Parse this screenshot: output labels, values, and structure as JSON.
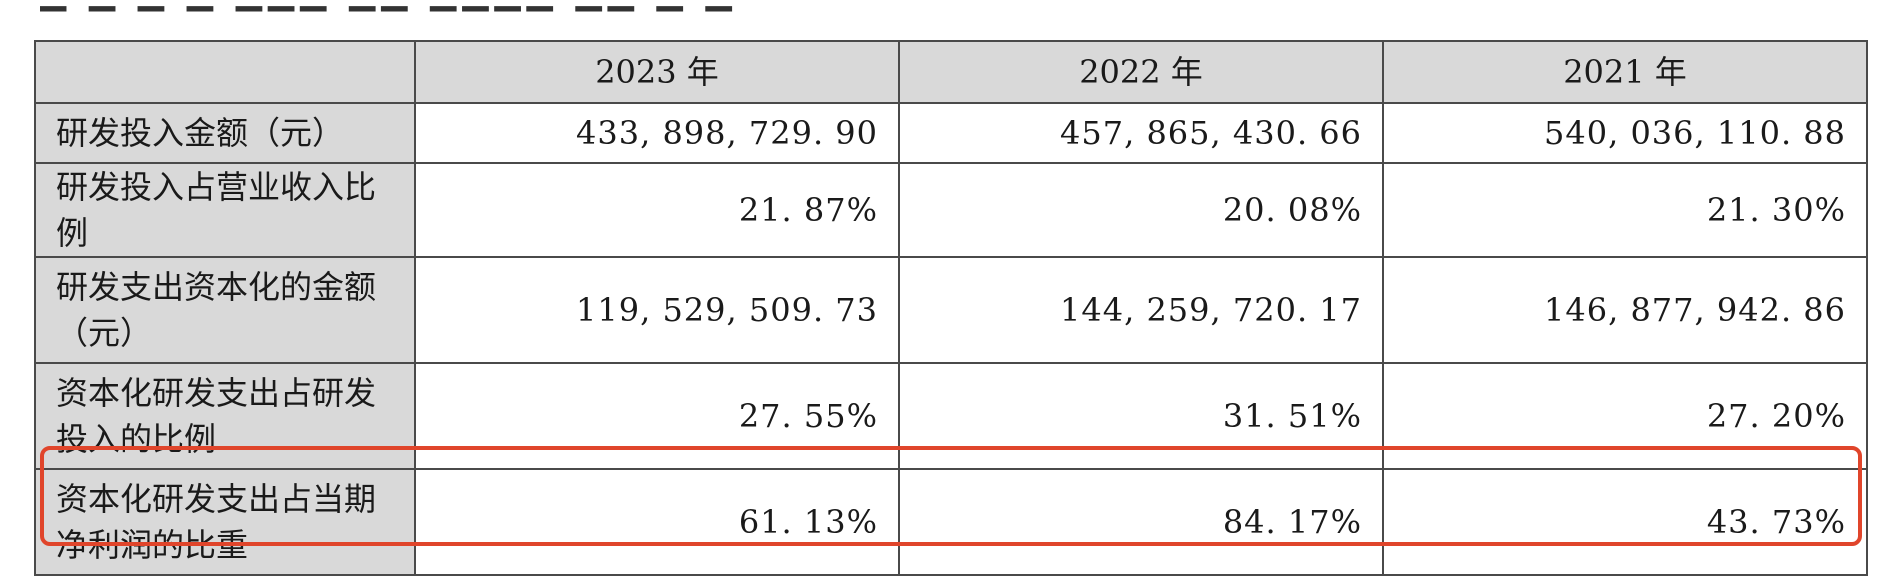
{
  "table": {
    "headers": [
      "",
      "2023 年",
      "2022 年",
      "2021 年"
    ],
    "rows": [
      {
        "label": "研发投入金额（元）",
        "values": [
          "433, 898, 729. 90",
          "457, 865, 430. 66",
          "540, 036, 110. 88"
        ]
      },
      {
        "label": "研发投入占营业收入比例",
        "values": [
          "21. 87%",
          "20. 08%",
          "21. 30%"
        ]
      },
      {
        "label": "研发支出资本化的金额（元）",
        "values": [
          "119, 529, 509. 73",
          "144, 259, 720. 17",
          "146, 877, 942. 86"
        ]
      },
      {
        "label": "资本化研发支出占研发投入的比例",
        "values": [
          "27. 55%",
          "31. 51%",
          "27. 20%"
        ]
      },
      {
        "label": "资本化研发支出占当期净利润的比重",
        "values": [
          "61. 13%",
          "84. 17%",
          "43. 73%"
        ]
      }
    ]
  },
  "highlight": {
    "color": "#e0452b",
    "row": 4
  }
}
